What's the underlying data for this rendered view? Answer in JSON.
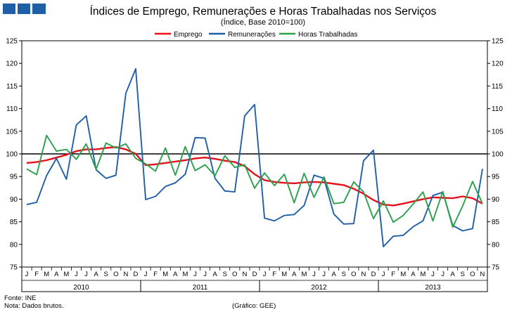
{
  "chart_data": {
    "type": "line",
    "title": "Índices de Emprego, Remunerações e Horas Trabalhadas nos Serviços",
    "subtitle": "(Índice, Base 2010=100)",
    "ylim": [
      75,
      125
    ],
    "yticks": [
      75,
      80,
      85,
      90,
      95,
      100,
      105,
      110,
      115,
      120,
      125
    ],
    "reference_line": 100,
    "legend_position": "top-center",
    "month_labels": [
      "J",
      "F",
      "M",
      "A",
      "M",
      "J",
      "J",
      "A",
      "S",
      "O",
      "N",
      "D",
      "J",
      "F",
      "M",
      "A",
      "M",
      "J",
      "J",
      "A",
      "S",
      "O",
      "N",
      "D",
      "J",
      "F",
      "M",
      "A",
      "M",
      "J",
      "J",
      "A",
      "S",
      "O",
      "N",
      "D",
      "J",
      "F",
      "M",
      "A",
      "M",
      "J",
      "J",
      "A",
      "S",
      "O",
      "N"
    ],
    "years": [
      {
        "label": "2010",
        "months": 12
      },
      {
        "label": "2011",
        "months": 12
      },
      {
        "label": "2012",
        "months": 12
      },
      {
        "label": "2013",
        "months": 11
      }
    ],
    "series": [
      {
        "name": "Emprego",
        "color": "#e8101a",
        "values": [
          98.0,
          98.2,
          98.6,
          99.2,
          99.8,
          100.6,
          101.0,
          101.0,
          101.3,
          101.5,
          101.0,
          100.0,
          97.5,
          97.7,
          98.0,
          98.3,
          98.6,
          99.0,
          99.2,
          98.9,
          98.5,
          98.2,
          97.3,
          95.5,
          94.2,
          93.8,
          93.6,
          93.5,
          93.7,
          93.8,
          93.7,
          93.4,
          93.1,
          92.3,
          91.2,
          89.8,
          88.8,
          88.6,
          89.0,
          89.5,
          90.0,
          90.4,
          90.3,
          90.2,
          90.6,
          90.2,
          89.0
        ]
      },
      {
        "name": "Remunerações",
        "color": "#1f5fa8",
        "values": [
          88.8,
          89.3,
          95.2,
          99.0,
          94.4,
          106.4,
          108.4,
          96.5,
          94.6,
          95.3,
          113.4,
          118.8,
          89.9,
          90.6,
          92.8,
          93.6,
          95.5,
          103.6,
          103.5,
          94.6,
          91.8,
          91.6,
          108.4,
          110.9,
          85.8,
          85.2,
          86.4,
          86.6,
          88.6,
          95.3,
          94.6,
          86.7,
          84.5,
          84.6,
          98.5,
          100.8,
          79.5,
          81.8,
          82.0,
          83.9,
          85.2,
          90.8,
          91.5,
          84.2,
          83.0,
          83.5,
          96.7
        ]
      },
      {
        "name": "Horas Trabalhadas",
        "color": "#2aa14a",
        "values": [
          96.7,
          95.4,
          104.1,
          100.6,
          101.0,
          98.8,
          102.2,
          96.6,
          102.4,
          101.3,
          102.2,
          99.0,
          97.8,
          96.2,
          101.3,
          95.3,
          101.6,
          96.3,
          97.6,
          95.2,
          99.6,
          97.0,
          97.6,
          92.4,
          95.8,
          93.0,
          95.5,
          89.2,
          95.7,
          90.4,
          94.9,
          89.0,
          89.3,
          93.8,
          91.6,
          85.7,
          89.6,
          84.9,
          86.4,
          88.9,
          91.6,
          85.2,
          91.7,
          83.8,
          88.5,
          93.9,
          89.0
        ]
      }
    ]
  },
  "footer": {
    "source": "Fonte: INE",
    "note": "Nota: Dados brutos.",
    "credit": "(Gráfico: GEE)"
  }
}
